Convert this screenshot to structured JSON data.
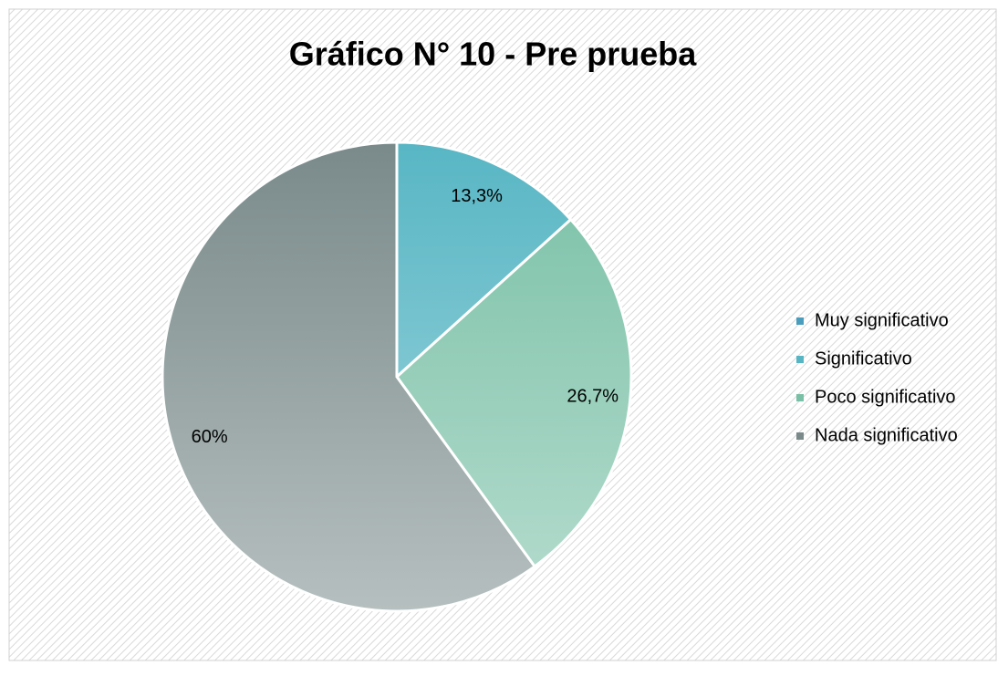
{
  "chart_data": {
    "type": "pie",
    "title": "Gráfico N° 10 - Pre prueba",
    "categories": [
      "Muy significativo",
      "Significativo",
      "Poco significativo",
      "Nada significativo"
    ],
    "values": [
      0,
      13.3,
      26.7,
      60
    ],
    "value_labels": [
      null,
      "13,3%",
      "26,7%",
      "60%"
    ],
    "colors": [
      "#4a9dbd",
      "#58b6c4",
      "#79c0a6",
      "#7a8a8a"
    ],
    "legend": "right"
  }
}
